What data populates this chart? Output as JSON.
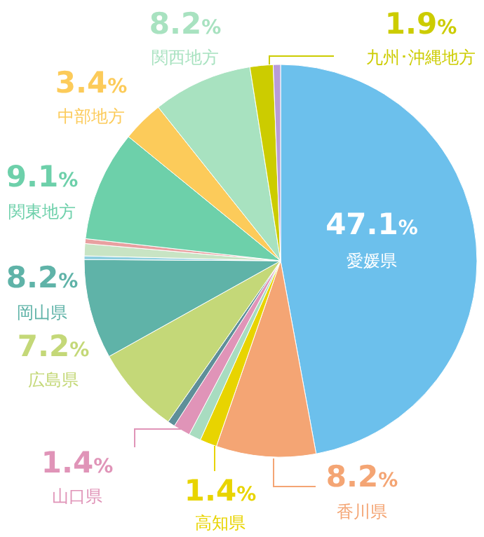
{
  "chart_data": {
    "type": "pie",
    "categories": [
      "愛媛県",
      "香川県",
      "高知県",
      null,
      "山口県",
      null,
      "広島県",
      "岡山県",
      null,
      null,
      null,
      "関東地方",
      "中部地方",
      "関西地方",
      "九州･沖縄地方",
      null
    ],
    "values": [
      47.1,
      8.2,
      1.4,
      1.0,
      1.4,
      0.6,
      7.2,
      8.2,
      0.3,
      1.0,
      0.4,
      9.1,
      3.4,
      8.2,
      1.9,
      0.6
    ],
    "value_labels": [
      "47.1%",
      "8.2%",
      "1.4%",
      null,
      "1.4%",
      null,
      "7.2%",
      "8.2%",
      null,
      null,
      null,
      "9.1%",
      "3.4%",
      "8.2%",
      "1.9%",
      null
    ],
    "colors": [
      "#6cc0ec",
      "#f4a574",
      "#e8d400",
      "#a8dcc0",
      "#e094b8",
      "#5f8f99",
      "#c4d878",
      "#5fb3a8",
      "#8ecfe0",
      "#c8e4c4",
      "#e8a0a0",
      "#6dd0aa",
      "#fccb5a",
      "#a8e2c0",
      "#cccc00",
      "#b89cd8"
    ]
  }
}
